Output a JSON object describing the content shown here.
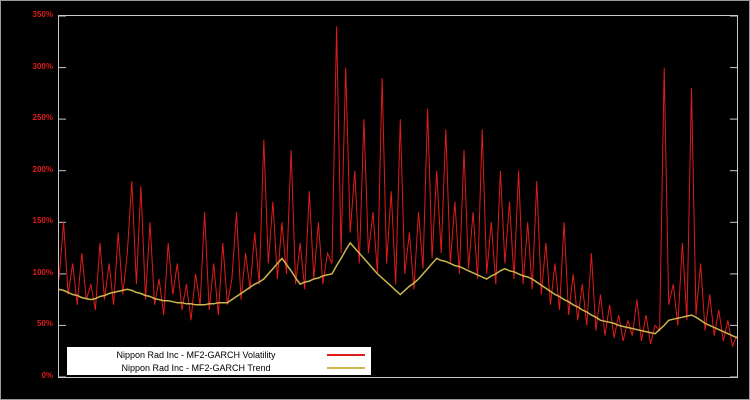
{
  "chart_data": {
    "type": "line",
    "title": "",
    "xlabel": "",
    "ylabel": "",
    "unit": "percent",
    "ylim": [
      0,
      350
    ],
    "ytick_values": [
      0,
      50,
      100,
      150,
      200,
      250,
      300,
      350
    ],
    "yticks": [
      "0%",
      "50%",
      "100%",
      "150%",
      "200%",
      "250%",
      "300%",
      "350%"
    ],
    "x_axis_labels_visible": false,
    "grid": false,
    "legend_position": "bottom-left",
    "background_color": "#000000",
    "frame_color": "#c8c8c8",
    "tick_label_color": "#e01b1b",
    "series": [
      {
        "name": "Nippon Rad Inc - MF2-GARCH Volatility",
        "color": "#e01b1b",
        "stroke_width": 1,
        "values": [
          95,
          150,
          80,
          110,
          70,
          120,
          75,
          90,
          65,
          130,
          75,
          110,
          70,
          140,
          80,
          120,
          190,
          90,
          185,
          75,
          150,
          70,
          95,
          60,
          130,
          80,
          110,
          65,
          90,
          55,
          100,
          70,
          160,
          65,
          110,
          60,
          130,
          70,
          95,
          160,
          75,
          120,
          85,
          140,
          90,
          230,
          110,
          170,
          95,
          150,
          100,
          220,
          90,
          130,
          85,
          180,
          95,
          150,
          90,
          120,
          110,
          340,
          120,
          300,
          140,
          200,
          110,
          250,
          120,
          160,
          100,
          290,
          110,
          180,
          90,
          250,
          100,
          140,
          85,
          160,
          105,
          260,
          115,
          200,
          120,
          240,
          110,
          170,
          100,
          220,
          105,
          160,
          95,
          240,
          100,
          150,
          90,
          200,
          110,
          170,
          95,
          200,
          90,
          150,
          85,
          190,
          80,
          130,
          70,
          110,
          65,
          150,
          60,
          100,
          55,
          90,
          50,
          120,
          45,
          80,
          40,
          70,
          38,
          60,
          35,
          55,
          40,
          75,
          35,
          60,
          32,
          50,
          45,
          300,
          70,
          90,
          50,
          130,
          55,
          280,
          60,
          110,
          45,
          80,
          40,
          65,
          35,
          55,
          30,
          40
        ]
      },
      {
        "name": "Nippon Rad Inc - MF2-GARCH Trend",
        "color": "#cdb64b",
        "stroke_width": 1.5,
        "values": [
          85,
          84,
          82,
          80,
          79,
          77,
          76,
          75,
          76,
          78,
          79,
          81,
          82,
          83,
          84,
          85,
          84,
          82,
          81,
          79,
          78,
          76,
          75,
          74,
          74,
          73,
          72,
          72,
          71,
          71,
          70,
          70,
          70,
          71,
          71,
          72,
          72,
          72,
          75,
          78,
          81,
          84,
          87,
          90,
          92,
          95,
          100,
          105,
          110,
          115,
          109,
          103,
          96,
          90,
          92,
          93,
          95,
          96,
          98,
          99,
          100,
          108,
          115,
          123,
          130,
          125,
          120,
          115,
          110,
          105,
          100,
          96,
          92,
          88,
          84,
          80,
          84,
          88,
          91,
          95,
          100,
          105,
          110,
          115,
          113,
          112,
          110,
          108,
          107,
          105,
          103,
          101,
          99,
          97,
          95,
          98,
          100,
          103,
          105,
          103,
          102,
          100,
          98,
          97,
          95,
          92,
          89,
          86,
          83,
          80,
          78,
          75,
          73,
          70,
          68,
          65,
          63,
          60,
          58,
          55,
          54,
          53,
          52,
          50,
          49,
          48,
          47,
          46,
          45,
          44,
          43,
          42,
          46,
          50,
          55,
          56,
          57,
          58,
          59,
          60,
          58,
          55,
          52,
          50,
          48,
          46,
          44,
          42,
          40,
          38
        ]
      }
    ]
  }
}
